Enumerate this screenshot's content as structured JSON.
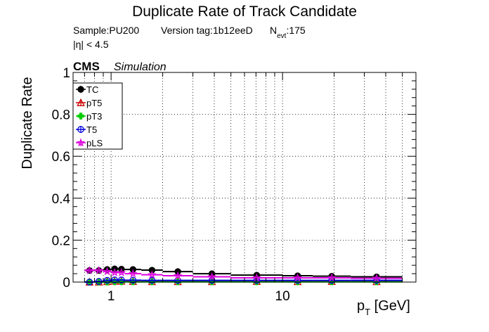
{
  "title": "Duplicate Rate of Track Candidate",
  "info": {
    "sample": "Sample:PU200",
    "version": "Version tag:1b12eeD",
    "nevt_prefix": "N",
    "nevt_sub": "evt",
    "nevt_value": ":175",
    "eta_cut": "|η| < 4.5"
  },
  "cms_label": "CMS",
  "simulation_label": "Simulation",
  "chart_data": {
    "type": "scatter",
    "xscale": "log",
    "xlim": [
      0.6,
      60
    ],
    "ylim": [
      0,
      1.0
    ],
    "grid": true,
    "legend_position": "top-left",
    "ylabel": "Duplicate Rate",
    "xlabel_main": "p",
    "xlabel_sub": "T",
    "xlabel_unit": " [GeV]",
    "yticks": [
      {
        "value": 0,
        "label": "0"
      },
      {
        "value": 0.2,
        "label": "0.2"
      },
      {
        "value": 0.4,
        "label": "0.4"
      },
      {
        "value": 0.6,
        "label": "0.6"
      },
      {
        "value": 0.8,
        "label": "0.8"
      },
      {
        "value": 1.0,
        "label": "1"
      }
    ],
    "xticks": [
      {
        "value": 1,
        "label": "1"
      },
      {
        "value": 10,
        "label": "10"
      }
    ],
    "bin_edges": [
      0.7,
      0.8,
      0.9,
      1.0,
      1.1,
      1.2,
      1.5,
      2.0,
      3.0,
      5.0,
      10,
      15,
      25,
      50
    ],
    "series": [
      {
        "name": "TC",
        "color": "#000000",
        "marker": "circle-filled",
        "values": [
          0.055,
          0.055,
          0.06,
          0.063,
          0.062,
          0.06,
          0.057,
          0.05,
          0.04,
          0.033,
          0.03,
          0.028,
          0.025
        ]
      },
      {
        "name": "pT5",
        "color": "#cc0000",
        "marker": "triangle-open",
        "values": [
          0.0,
          0.0,
          0.002,
          0.004,
          0.004,
          0.003,
          0.002,
          0.002,
          0.002,
          0.003,
          0.002,
          0.003,
          0.002
        ]
      },
      {
        "name": "pT3",
        "color": "#00cc00",
        "marker": "cross-filled",
        "values": [
          0.0,
          0.0,
          0.0,
          0.001,
          0.001,
          0.001,
          0.001,
          0.001,
          0.001,
          0.001,
          0.001,
          0.001,
          0.001
        ]
      },
      {
        "name": "T5",
        "color": "#0000dd",
        "marker": "circle-open",
        "values": [
          0.0,
          0.003,
          0.008,
          0.01,
          0.01,
          0.009,
          0.008,
          0.008,
          0.008,
          0.008,
          0.008,
          0.008,
          0.008
        ]
      },
      {
        "name": "pLS",
        "color": "#dd00dd",
        "marker": "star-open",
        "values": [
          0.055,
          0.055,
          0.05,
          0.045,
          0.045,
          0.04,
          0.035,
          0.03,
          0.025,
          0.02,
          0.02,
          0.02,
          0.018
        ]
      }
    ]
  }
}
